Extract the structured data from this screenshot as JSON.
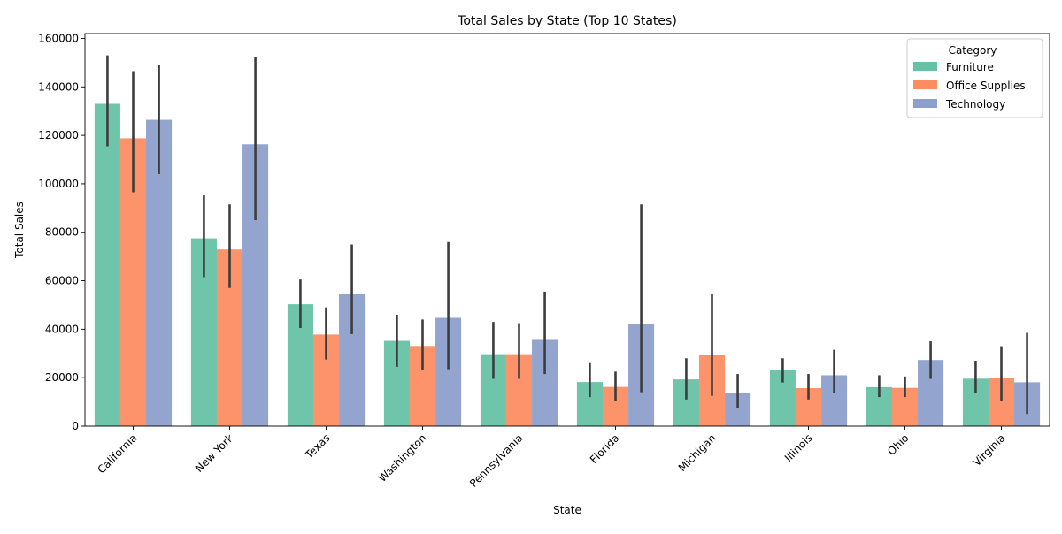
{
  "chart_data": {
    "type": "bar",
    "title": "Total Sales by State (Top 10 States)",
    "xlabel": "State",
    "ylabel": "Total Sales",
    "ylim": [
      0,
      162000
    ],
    "yticks": [
      0,
      20000,
      40000,
      60000,
      80000,
      100000,
      120000,
      140000,
      160000
    ],
    "grid": false,
    "legend": {
      "title": "Category",
      "placement": "top-right"
    },
    "categories": [
      "California",
      "New York",
      "Texas",
      "Washington",
      "Pennsylvania",
      "Florida",
      "Michigan",
      "Illinois",
      "Ohio",
      "Virginia"
    ],
    "series": [
      {
        "name": "Furniture",
        "color": "#66c2a5",
        "values": [
          133000,
          77500,
          50300,
          35200,
          29700,
          18200,
          19300,
          23300,
          16100,
          19600
        ],
        "error_low": [
          115500,
          61500,
          40500,
          24500,
          19500,
          12000,
          11000,
          18000,
          12000,
          13500
        ],
        "error_high": [
          153000,
          95500,
          60500,
          46000,
          43000,
          26000,
          28000,
          28000,
          21000,
          27000
        ]
      },
      {
        "name": "Office Supplies",
        "color": "#fc8d62",
        "values": [
          118800,
          72900,
          37800,
          33100,
          29700,
          16200,
          29400,
          15700,
          15800,
          19900
        ],
        "error_low": [
          96500,
          57000,
          27500,
          23000,
          19500,
          10500,
          12500,
          11000,
          12000,
          10500
        ],
        "error_high": [
          146500,
          91500,
          49000,
          44000,
          42500,
          22500,
          54500,
          21500,
          20500,
          33000
        ]
      },
      {
        "name": "Technology",
        "color": "#8da0cb",
        "values": [
          126400,
          116300,
          54600,
          44700,
          35600,
          42300,
          13600,
          21000,
          27300,
          18100
        ],
        "error_low": [
          104000,
          85000,
          38000,
          23500,
          21500,
          14000,
          7500,
          13500,
          19500,
          5000
        ],
        "error_high": [
          149000,
          152500,
          75000,
          76000,
          55500,
          91500,
          21500,
          31500,
          35000,
          38500
        ]
      }
    ]
  }
}
